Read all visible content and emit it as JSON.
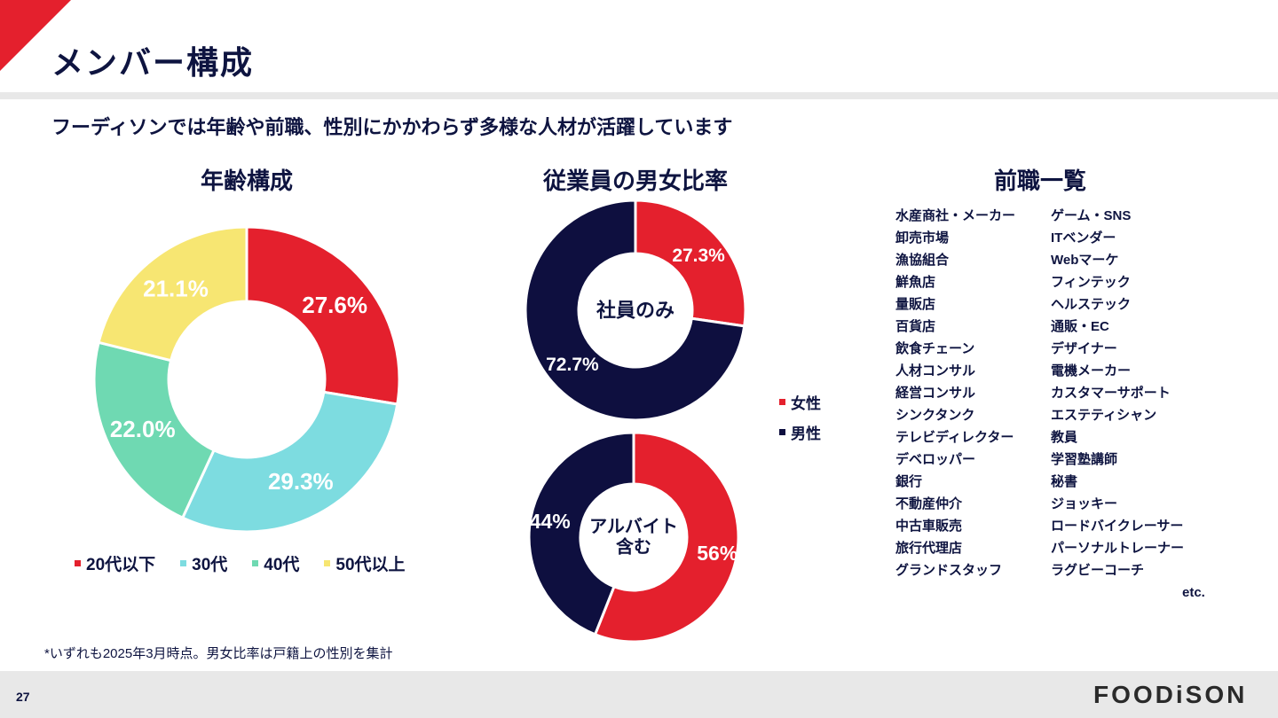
{
  "page": {
    "title": "メンバー構成",
    "subtitle": "フーディソンでは年齢や前職、性別にかかわらず多様な人材が活躍しています",
    "footnote": "*いずれも2025年3月時点。男女比率は戸籍上の性別を集計",
    "page_number": "27",
    "logo": "FOODiSON",
    "accent_color": "#e4202d"
  },
  "age": {
    "title": "年齢構成"
  },
  "gender": {
    "title": "従業員の男女比率",
    "legend": [
      {
        "label": "女性",
        "color": "#e4202d"
      },
      {
        "label": "男性",
        "color": "#0e0f3f"
      }
    ]
  },
  "jobs": {
    "title": "前職一覧",
    "col1": [
      "水産商社・メーカー",
      "卸売市場",
      "漁協組合",
      "鮮魚店",
      "量販店",
      "百貨店",
      "飲食チェーン",
      "人材コンサル",
      "経営コンサル",
      "シンクタンク",
      "テレビディレクター",
      "デベロッパー",
      "銀行",
      "不動産仲介",
      "中古車販売",
      "旅行代理店",
      "グランドスタッフ"
    ],
    "col2": [
      "ゲーム・SNS",
      "ITベンダー",
      "Webマーケ",
      "フィンテック",
      "ヘルステック",
      "通販・EC",
      "デザイナー",
      "電機メーカー",
      "カスタマーサポート",
      "エステティシャン",
      "教員",
      "学習塾講師",
      "秘書",
      "ジョッキー",
      "ロードバイクレーサー",
      "パーソナルトレーナー",
      "ラグビーコーチ"
    ],
    "etc": "etc."
  },
  "chart_data": [
    {
      "type": "pie",
      "title": "年齢構成",
      "categories": [
        "20代以下",
        "30代",
        "40代",
        "50代以上"
      ],
      "values": [
        27.6,
        29.3,
        22.0,
        21.1
      ],
      "labels": [
        "27.6%",
        "29.3%",
        "22.0%",
        "21.1%"
      ],
      "colors": [
        "#e4202d",
        "#7ddce0",
        "#6fd9b2",
        "#f7e672"
      ],
      "legend": "bottom"
    },
    {
      "type": "pie",
      "center_label": "社員のみ",
      "categories": [
        "女性",
        "男性"
      ],
      "values": [
        27.3,
        72.7
      ],
      "labels": [
        "27.3%",
        "72.7%"
      ],
      "colors": [
        "#e4202d",
        "#0e0f3f"
      ]
    },
    {
      "type": "pie",
      "center_label": "アルバイト\n含む",
      "categories": [
        "女性",
        "男性"
      ],
      "values": [
        56,
        44
      ],
      "labels": [
        "56%",
        "44%"
      ],
      "colors": [
        "#e4202d",
        "#0e0f3f"
      ]
    }
  ]
}
